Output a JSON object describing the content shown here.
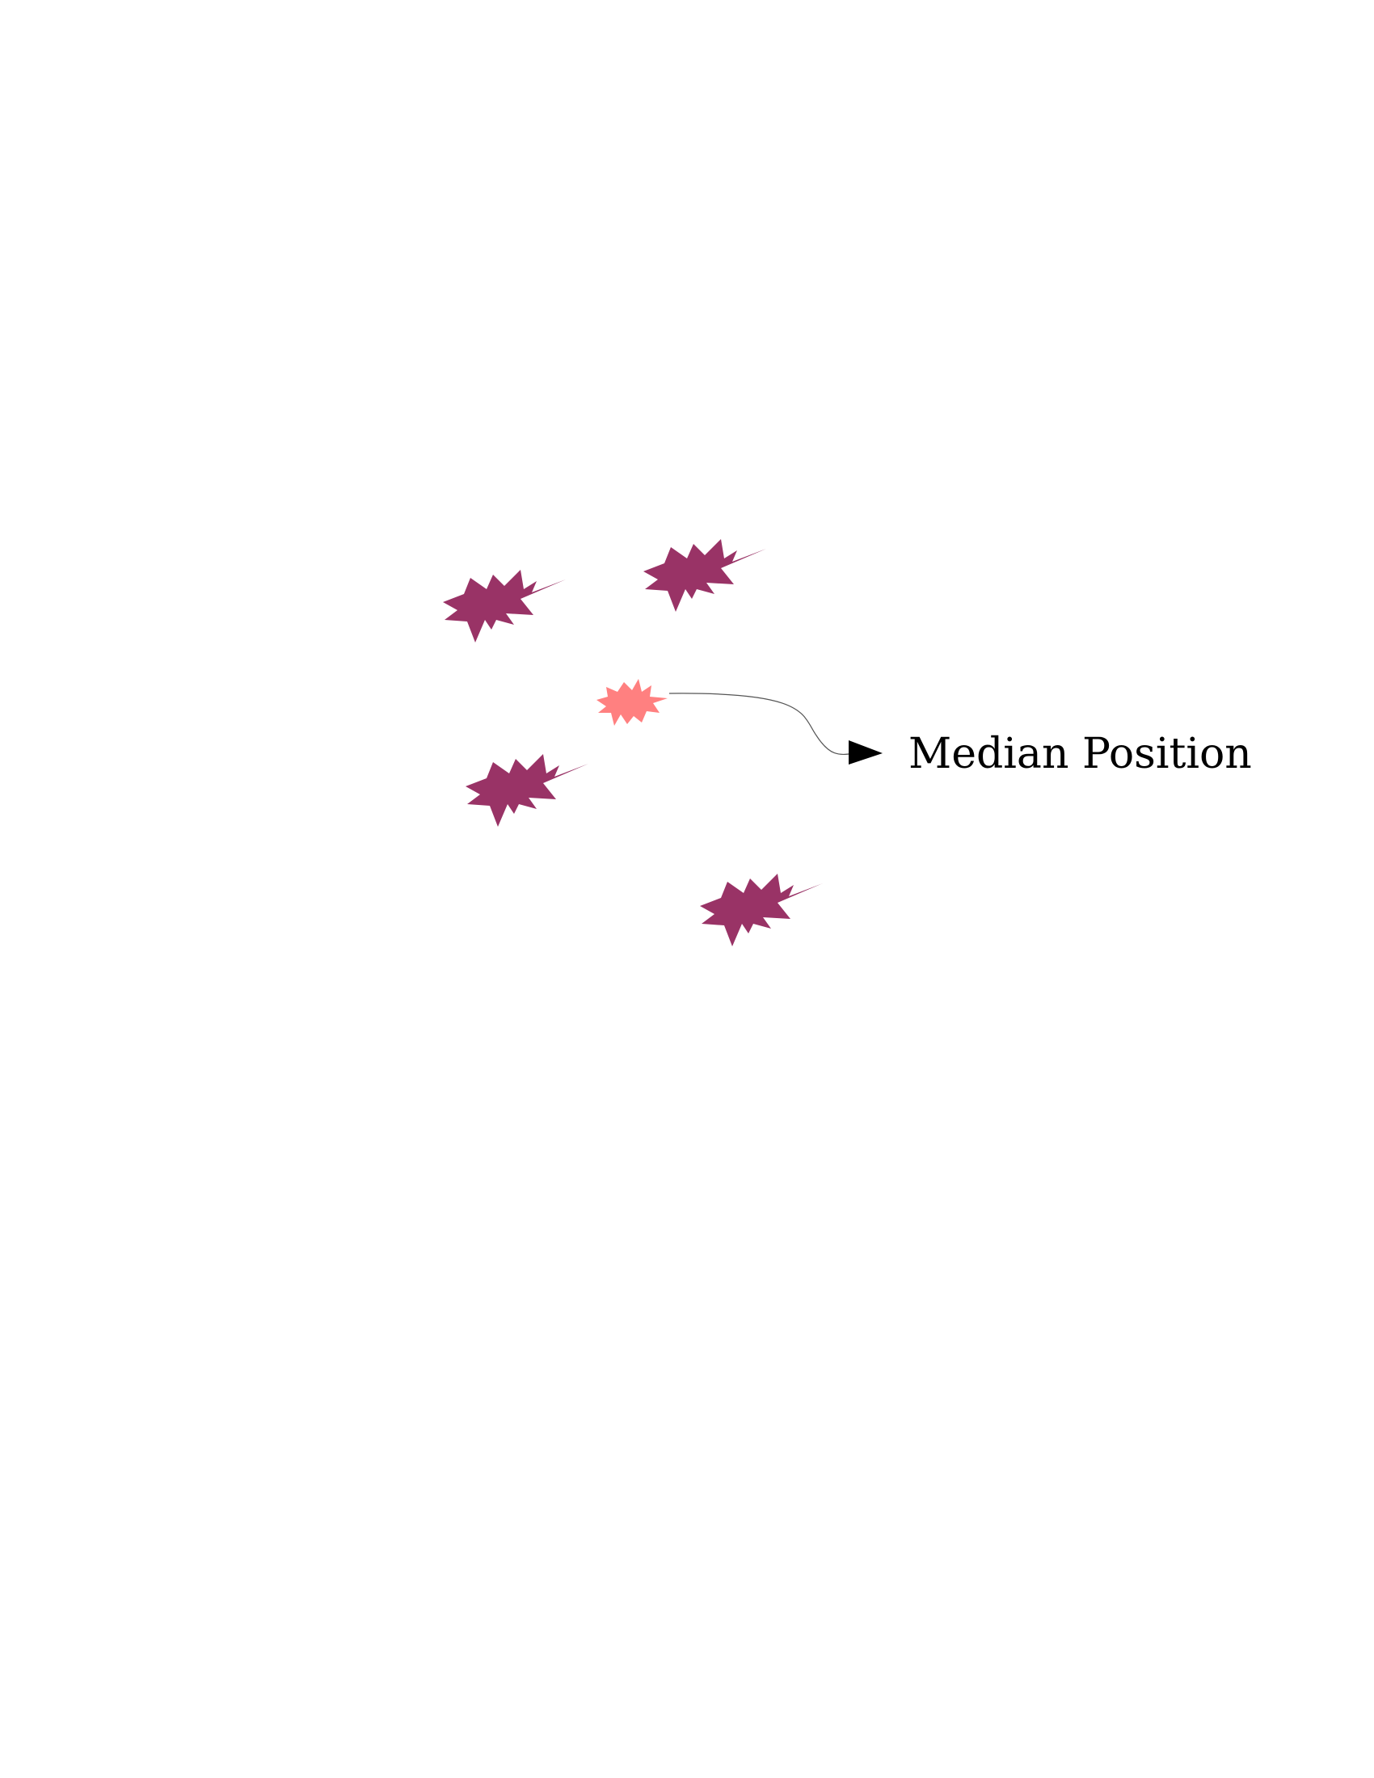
{
  "diagram": {
    "label": "Median Position",
    "colors": {
      "point": "#993366",
      "median": "#ff8080",
      "connector": "#555555",
      "arrowhead": "#000000",
      "text": "#000000"
    },
    "points": [
      {
        "name": "point-1",
        "kind": "data"
      },
      {
        "name": "point-2",
        "kind": "data"
      },
      {
        "name": "point-3",
        "kind": "data"
      },
      {
        "name": "point-4",
        "kind": "data"
      },
      {
        "name": "median-point",
        "kind": "median"
      }
    ]
  }
}
